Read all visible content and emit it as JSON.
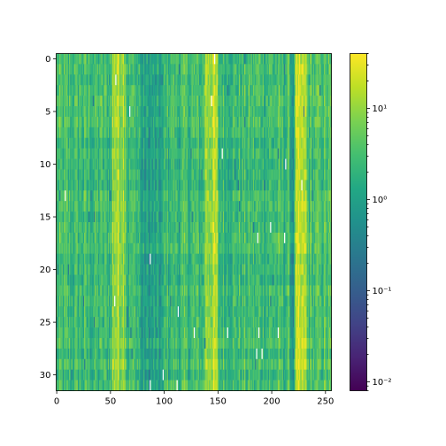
{
  "chart_data": {
    "type": "heatmap",
    "title": "",
    "xlabel": "",
    "ylabel": "",
    "n_rows": 32,
    "n_cols": 256,
    "xlim": [
      -0.5,
      255.5
    ],
    "ylim": [
      31.5,
      -0.5
    ],
    "x_ticks": [
      0,
      50,
      100,
      150,
      200,
      250
    ],
    "y_ticks": [
      0,
      5,
      10,
      15,
      20,
      25,
      30
    ],
    "x_tick_labels": [
      "0",
      "50",
      "100",
      "150",
      "200",
      "250"
    ],
    "y_tick_labels": [
      "0",
      "5",
      "10",
      "15",
      "20",
      "25",
      "30"
    ],
    "colormap": "viridis",
    "color_scale": "log",
    "clim": [
      0.008,
      40
    ],
    "colorbar_ticks": [
      0.01,
      0.1,
      1,
      10
    ],
    "colorbar_tick_labels": [
      "10⁻²",
      "10⁻¹",
      "10⁰",
      "10¹"
    ],
    "column_profile": [
      {
        "from": 0,
        "to": 52,
        "level": 2.5
      },
      {
        "from": 52,
        "to": 65,
        "level": 12
      },
      {
        "from": 65,
        "to": 78,
        "level": 2.5
      },
      {
        "from": 78,
        "to": 100,
        "level": 0.9
      },
      {
        "from": 100,
        "to": 138,
        "level": 2.5
      },
      {
        "from": 138,
        "to": 150,
        "level": 12
      },
      {
        "from": 150,
        "to": 218,
        "level": 2.5
      },
      {
        "from": 218,
        "to": 222,
        "level": 0.8
      },
      {
        "from": 222,
        "to": 233,
        "level": 12
      },
      {
        "from": 233,
        "to": 256,
        "level": 3
      }
    ]
  }
}
